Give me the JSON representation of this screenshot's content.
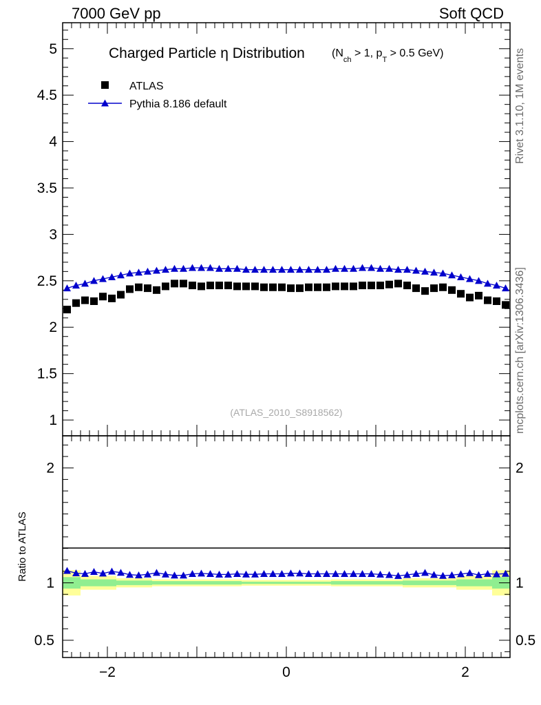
{
  "header": {
    "left": "7000 GeV pp",
    "right": "Soft QCD"
  },
  "side_labels": {
    "rivet": "Rivet 3.1.10,  1M events",
    "mcplots": "mcplots.cern.ch [arXiv:1306.3436]"
  },
  "chart_data": [
    {
      "type": "scatter",
      "title_main": "Charged Particle η Distribution",
      "title_cuts": "(N",
      "title_sub1": "ch",
      "title_mid": " > 1, p",
      "title_sub2": "T",
      "title_end": " > 0.5 GeV)",
      "watermark": "(ATLAS_2010_S8918562)",
      "xlim": [
        -2.5,
        2.5
      ],
      "ylim": [
        0.83,
        5.28
      ],
      "yticks": [
        "1",
        "1.5",
        "2",
        "2.5",
        "3",
        "3.5",
        "4",
        "4.5",
        "5"
      ],
      "legend_position": "top-left",
      "x": [
        -2.45,
        -2.35,
        -2.25,
        -2.15,
        -2.05,
        -1.95,
        -1.85,
        -1.75,
        -1.65,
        -1.55,
        -1.45,
        -1.35,
        -1.25,
        -1.15,
        -1.05,
        -0.95,
        -0.85,
        -0.75,
        -0.65,
        -0.55,
        -0.45,
        -0.35,
        -0.25,
        -0.15,
        -0.05,
        0.05,
        0.15,
        0.25,
        0.35,
        0.45,
        0.55,
        0.65,
        0.75,
        0.85,
        0.95,
        1.05,
        1.15,
        1.25,
        1.35,
        1.45,
        1.55,
        1.65,
        1.75,
        1.85,
        1.95,
        2.05,
        2.15,
        2.25,
        2.35,
        2.45
      ],
      "series": [
        {
          "name": "ATLAS",
          "color": "#000000",
          "marker": "square",
          "values": [
            2.19,
            2.26,
            2.29,
            2.28,
            2.33,
            2.31,
            2.35,
            2.41,
            2.43,
            2.42,
            2.4,
            2.44,
            2.47,
            2.47,
            2.45,
            2.44,
            2.45,
            2.45,
            2.45,
            2.44,
            2.44,
            2.44,
            2.43,
            2.43,
            2.43,
            2.42,
            2.42,
            2.43,
            2.43,
            2.43,
            2.44,
            2.44,
            2.44,
            2.45,
            2.45,
            2.45,
            2.46,
            2.47,
            2.45,
            2.42,
            2.39,
            2.42,
            2.43,
            2.4,
            2.36,
            2.32,
            2.34,
            2.29,
            2.28,
            2.24
          ]
        },
        {
          "name": "Pythia 8.186 default",
          "color": "#0000cc",
          "marker": "triangle",
          "values": [
            2.42,
            2.45,
            2.47,
            2.5,
            2.52,
            2.54,
            2.56,
            2.58,
            2.59,
            2.6,
            2.61,
            2.62,
            2.63,
            2.63,
            2.64,
            2.64,
            2.64,
            2.63,
            2.63,
            2.63,
            2.62,
            2.62,
            2.62,
            2.62,
            2.62,
            2.62,
            2.62,
            2.62,
            2.62,
            2.62,
            2.63,
            2.63,
            2.63,
            2.64,
            2.64,
            2.63,
            2.63,
            2.62,
            2.62,
            2.61,
            2.6,
            2.59,
            2.58,
            2.56,
            2.54,
            2.52,
            2.5,
            2.47,
            2.45,
            2.42
          ]
        }
      ]
    },
    {
      "type": "scatter",
      "ylabel": "Ratio to ATLAS",
      "xlim": [
        -2.5,
        2.5
      ],
      "ylim": [
        0.35,
        2.28
      ],
      "xticks": [
        "−2",
        "0",
        "2"
      ],
      "yticks": [
        "0.5",
        "1",
        "2"
      ],
      "reference_line": 1,
      "band_colors": {
        "inner": "#90ee90",
        "outer": "#ffff99"
      },
      "bands": [
        {
          "x0": -2.5,
          "x1": -2.3,
          "inner": [
            0.95,
            1.05
          ],
          "outer": [
            0.89,
            1.11
          ]
        },
        {
          "x0": -2.3,
          "x1": -1.9,
          "inner": [
            0.97,
            1.03
          ],
          "outer": [
            0.94,
            1.06
          ]
        },
        {
          "x0": -1.9,
          "x1": -1.5,
          "inner": [
            0.98,
            1.02
          ],
          "outer": [
            0.96,
            1.04
          ]
        },
        {
          "x0": -1.5,
          "x1": -0.5,
          "inner": [
            0.985,
            1.015
          ],
          "outer": [
            0.97,
            1.03
          ]
        },
        {
          "x0": -0.5,
          "x1": 0.5,
          "inner": [
            0.99,
            1.01
          ],
          "outer": [
            0.975,
            1.025
          ]
        },
        {
          "x0": 0.5,
          "x1": 1.3,
          "inner": [
            0.985,
            1.015
          ],
          "outer": [
            0.97,
            1.03
          ]
        },
        {
          "x0": 1.3,
          "x1": 1.9,
          "inner": [
            0.98,
            1.02
          ],
          "outer": [
            0.96,
            1.04
          ]
        },
        {
          "x0": 1.9,
          "x1": 2.3,
          "inner": [
            0.97,
            1.03
          ],
          "outer": [
            0.94,
            1.06
          ]
        },
        {
          "x0": 2.3,
          "x1": 2.5,
          "inner": [
            0.95,
            1.05
          ],
          "outer": [
            0.89,
            1.11
          ]
        }
      ],
      "x": [
        -2.45,
        -2.35,
        -2.25,
        -2.15,
        -2.05,
        -1.95,
        -1.85,
        -1.75,
        -1.65,
        -1.55,
        -1.45,
        -1.35,
        -1.25,
        -1.15,
        -1.05,
        -0.95,
        -0.85,
        -0.75,
        -0.65,
        -0.55,
        -0.45,
        -0.35,
        -0.25,
        -0.15,
        -0.05,
        0.05,
        0.15,
        0.25,
        0.35,
        0.45,
        0.55,
        0.65,
        0.75,
        0.85,
        0.95,
        1.05,
        1.15,
        1.25,
        1.35,
        1.45,
        1.55,
        1.65,
        1.75,
        1.85,
        1.95,
        2.05,
        2.15,
        2.25,
        2.35,
        2.45
      ],
      "series": [
        {
          "name": "Pythia 8.186 default",
          "color": "#0000cc",
          "values": [
            1.105,
            1.084,
            1.079,
            1.096,
            1.082,
            1.099,
            1.089,
            1.071,
            1.066,
            1.074,
            1.088,
            1.074,
            1.065,
            1.065,
            1.078,
            1.082,
            1.078,
            1.073,
            1.073,
            1.078,
            1.074,
            1.074,
            1.078,
            1.078,
            1.078,
            1.083,
            1.083,
            1.078,
            1.078,
            1.078,
            1.078,
            1.078,
            1.078,
            1.078,
            1.078,
            1.073,
            1.069,
            1.061,
            1.069,
            1.079,
            1.088,
            1.07,
            1.062,
            1.067,
            1.076,
            1.086,
            1.068,
            1.079,
            1.075,
            1.08
          ]
        }
      ]
    }
  ]
}
